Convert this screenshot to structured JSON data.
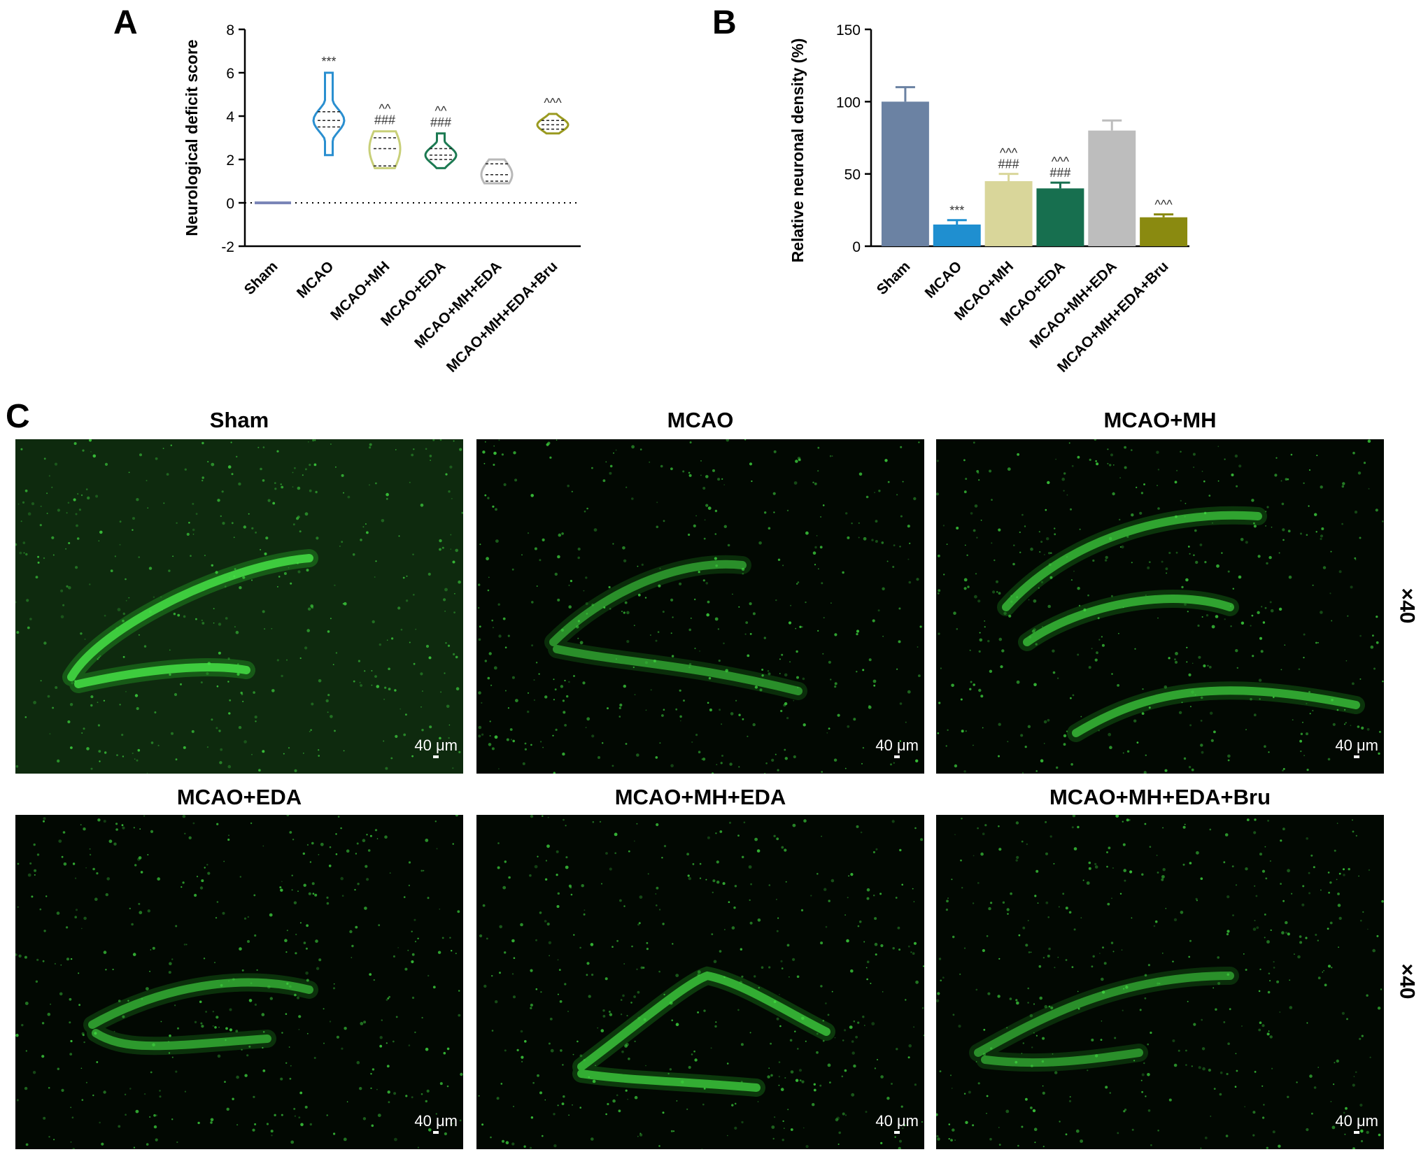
{
  "panel_a": {
    "letter": "A",
    "annotations": [
      "",
      "***",
      "^^\n###",
      "^^\n###",
      "",
      "^^^"
    ]
  },
  "panel_b": {
    "letter": "B",
    "annotations": [
      "",
      "***",
      "^^^\n###",
      "^^^\n###",
      "",
      "^^^"
    ]
  },
  "panel_c": {
    "letter": "C",
    "magnification": "×40",
    "scale_label": "40 μm",
    "images": [
      {
        "title": "Sham"
      },
      {
        "title": "MCAO"
      },
      {
        "title": "MCAO+MH"
      },
      {
        "title": "MCAO+EDA"
      },
      {
        "title": "MCAO+MH+EDA"
      },
      {
        "title": "MCAO+MH+EDA+Bru"
      }
    ]
  },
  "chart_data": [
    {
      "type": "violin",
      "ylabel": "Neurological deficit score",
      "ylim": [
        -2,
        8
      ],
      "yticks": [
        -2,
        0,
        2,
        4,
        6,
        8
      ],
      "reference_line": 0,
      "categories": [
        "Sham",
        "MCAO",
        "MCAO+MH",
        "MCAO+EDA",
        "MCAO+MH+EDA",
        "MCAO+MH+EDA+Bru"
      ],
      "colors": [
        "#7b86b8",
        "#2a8fd0",
        "#c8cf78",
        "#1c7a52",
        "#b8b8b8",
        "#9a9a20"
      ],
      "series": [
        {
          "min": 0,
          "max": 0,
          "q1": 0,
          "median": 0,
          "q3": 0
        },
        {
          "min": 2.2,
          "max": 6.0,
          "q1": 3.5,
          "median": 3.8,
          "q3": 4.2
        },
        {
          "min": 1.6,
          "max": 3.3,
          "q1": 1.7,
          "median": 2.5,
          "q3": 3.0
        },
        {
          "min": 1.6,
          "max": 3.2,
          "q1": 2.0,
          "median": 2.2,
          "q3": 2.5
        },
        {
          "min": 0.9,
          "max": 2.0,
          "q1": 1.0,
          "median": 1.3,
          "q3": 1.8
        },
        {
          "min": 3.2,
          "max": 4.1,
          "q1": 3.4,
          "median": 3.6,
          "q3": 3.8
        }
      ]
    },
    {
      "type": "bar",
      "ylabel": "Relative neuronal density (%)",
      "ylim": [
        0,
        150
      ],
      "yticks": [
        0,
        50,
        100,
        150
      ],
      "categories": [
        "Sham",
        "MCAO",
        "MCAO+MH",
        "MCAO+EDA",
        "MCAO+MH+EDA",
        "MCAO+MH+EDA+Bru"
      ],
      "colors": [
        "#6b82a3",
        "#1f8fd0",
        "#d9d69a",
        "#176f4f",
        "#bdbdbd",
        "#8a8a10"
      ],
      "values": [
        100,
        15,
        45,
        40,
        80,
        20
      ],
      "errors": [
        10,
        3,
        5,
        4,
        7,
        2
      ]
    }
  ]
}
